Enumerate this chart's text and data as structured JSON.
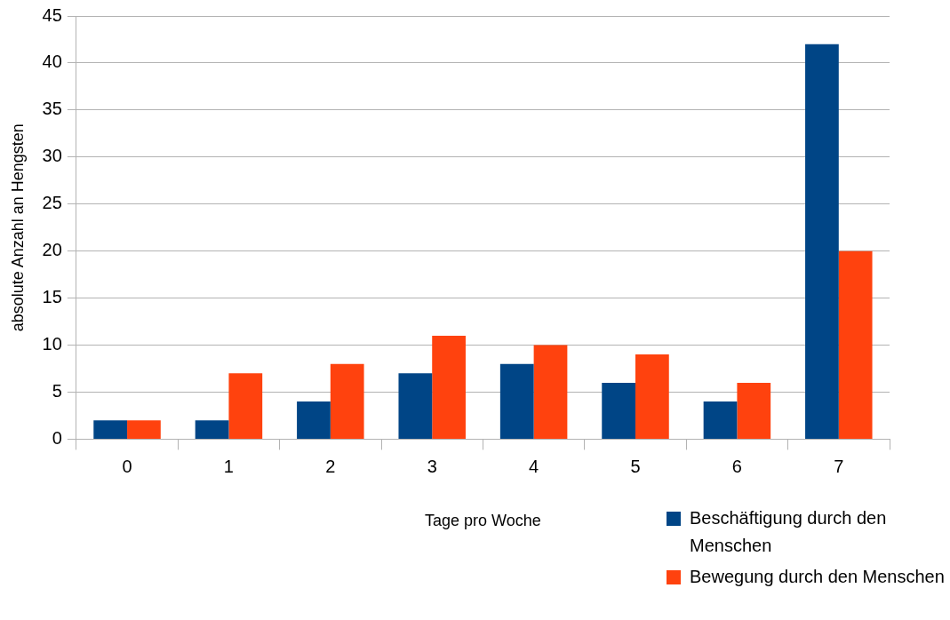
{
  "chart_data": {
    "type": "bar",
    "xlabel": "Tage pro Woche",
    "ylabel": "absolute Anzahl an Hengsten",
    "categories": [
      "0",
      "1",
      "2",
      "3",
      "4",
      "5",
      "6",
      "7"
    ],
    "series": [
      {
        "name": "Beschäftigung durch den Menschen",
        "color": "#004586",
        "values": [
          2,
          2,
          4,
          7,
          8,
          6,
          4,
          42
        ]
      },
      {
        "name": "Bewegung durch den Menschen",
        "color": "#ff420e",
        "values": [
          2,
          7,
          8,
          11,
          10,
          9,
          6,
          20
        ]
      }
    ],
    "ylim": [
      0,
      45
    ],
    "yticks": [
      0,
      5,
      10,
      15,
      20,
      25,
      30,
      35,
      40,
      45
    ],
    "grid": "y",
    "legend": "bottom right"
  }
}
